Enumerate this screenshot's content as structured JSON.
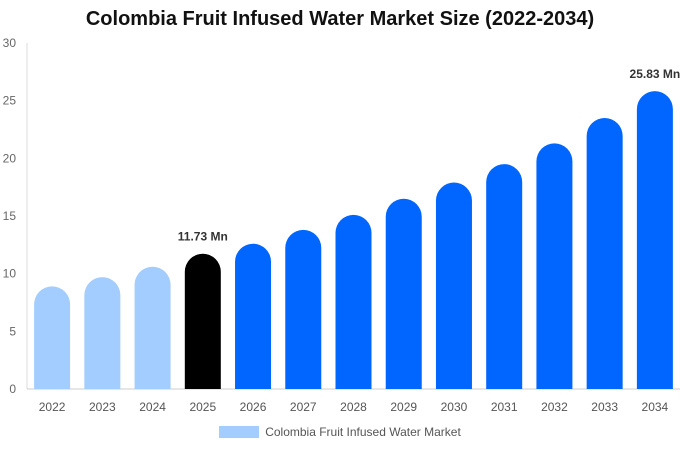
{
  "chart_data": {
    "type": "bar",
    "title": "Colombia Fruit Infused Water Market Size (2022-2034)",
    "xlabel": "",
    "ylabel": "",
    "ylim": [
      0,
      30
    ],
    "yticks": [
      0,
      5,
      10,
      15,
      20,
      25,
      30
    ],
    "grid": false,
    "legend_position": "bottom",
    "categories": [
      "2022",
      "2023",
      "2024",
      "2025",
      "2026",
      "2027",
      "2028",
      "2029",
      "2030",
      "2031",
      "2032",
      "2033",
      "2034"
    ],
    "series": [
      {
        "name": "Colombia Fruit Infused Water Market",
        "values": [
          8.9,
          9.7,
          10.6,
          11.73,
          12.6,
          13.8,
          15.1,
          16.5,
          17.9,
          19.5,
          21.3,
          23.5,
          25.83
        ]
      }
    ],
    "bar_colors": [
      "#a3cdff",
      "#a3cdff",
      "#a3cdff",
      "#000000",
      "#0066ff",
      "#0066ff",
      "#0066ff",
      "#0066ff",
      "#0066ff",
      "#0066ff",
      "#0066ff",
      "#0066ff",
      "#0066ff"
    ],
    "legend_color": "#a3cdff",
    "annotations": [
      {
        "category": "2025",
        "text": "11.73 Mn"
      },
      {
        "category": "2034",
        "text": "25.83 Mn"
      }
    ]
  }
}
